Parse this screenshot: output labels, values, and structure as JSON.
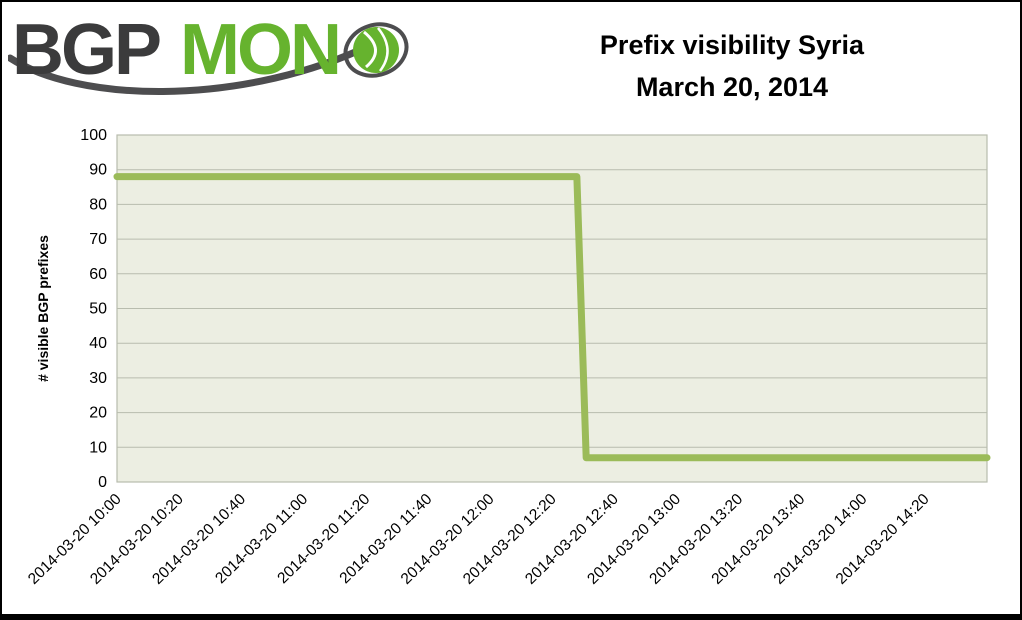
{
  "logo": {
    "text_bgp": "BGP",
    "text_mon": "MON",
    "colors": {
      "bgp": "#3B3B3C",
      "mon": "#66B32E",
      "swoosh": "#4D4D4F",
      "globe": "#66B32E"
    }
  },
  "header": {
    "title_line1": "Prefix visibility Syria",
    "title_line2": "March 20, 2014"
  },
  "chart_data": {
    "type": "line",
    "title": "Prefix visibility Syria March 20, 2014",
    "xlabel": "",
    "ylabel": "# visible BGP prefixes",
    "ylim": [
      0,
      100
    ],
    "y_tick_step": 10,
    "y_ticks": [
      0,
      10,
      20,
      30,
      40,
      50,
      60,
      70,
      80,
      90,
      100
    ],
    "x_tick_labels": [
      "2014-03-20 10:00",
      "2014-03-20 10:20",
      "2014-03-20 10:40",
      "2014-03-20 11:00",
      "2014-03-20 11:20",
      "2014-03-20 11:40",
      "2014-03-20 12:00",
      "2014-03-20 12:20",
      "2014-03-20 12:40",
      "2014-03-20 13:00",
      "2014-03-20 13:20",
      "2014-03-20 13:40",
      "2014-03-20 14:00",
      "2014-03-20 14:20"
    ],
    "x_axis_start": "2014-03-20 10:00",
    "x_axis_end": "2014-03-20 14:40",
    "grid": true,
    "legend": false,
    "series": [
      {
        "name": "# visible BGP prefixes",
        "color": "#9BBB59",
        "stroke_width": 7,
        "points": [
          {
            "time": "2014-03-20 10:00",
            "value": 88
          },
          {
            "time": "2014-03-20 12:28",
            "value": 88
          },
          {
            "time": "2014-03-20 12:31",
            "value": 7
          },
          {
            "time": "2014-03-20 14:40",
            "value": 7
          }
        ]
      }
    ],
    "annotations": {
      "event": "Sharp drop from 88 visible prefixes to 7 at ~2014-03-20 12:30"
    },
    "colors": {
      "plot_bg": "#ECEEE2",
      "grid": "#B8BCAE",
      "axis_text": "#000000"
    }
  }
}
